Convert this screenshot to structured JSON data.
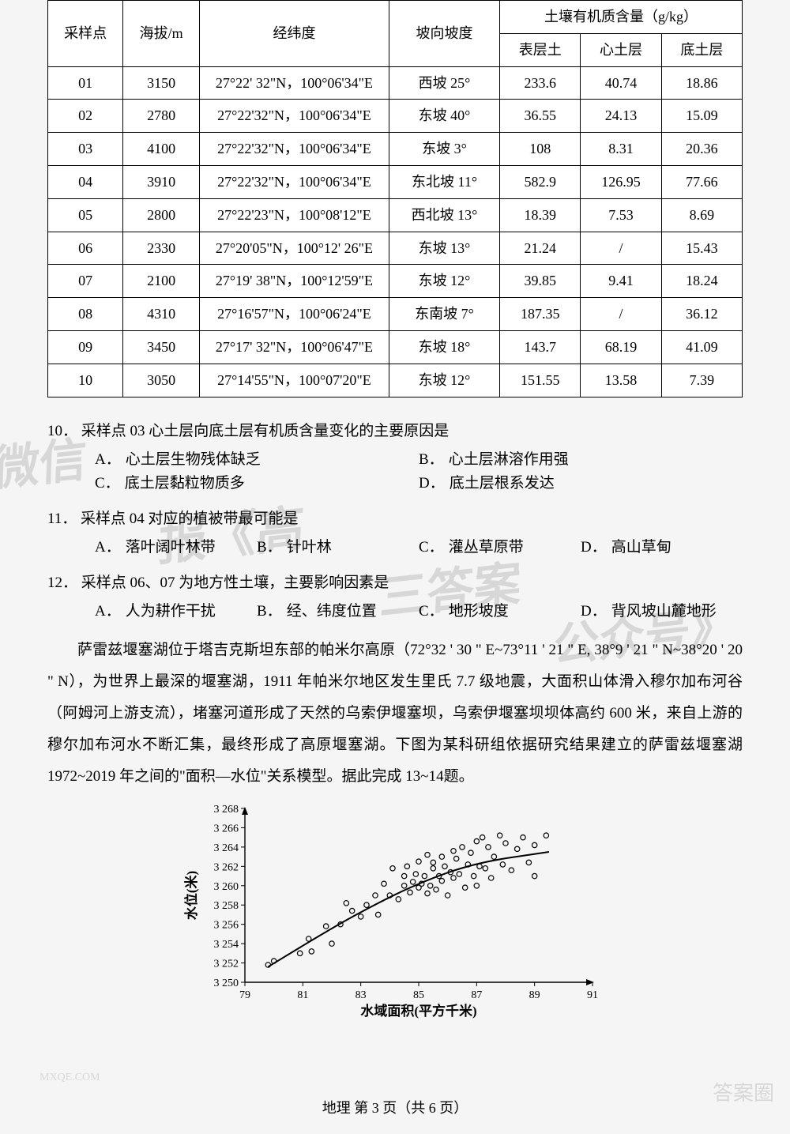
{
  "table": {
    "type": "table",
    "headers": {
      "col1": "采样点",
      "col2": "海拔/m",
      "col3": "经纬度",
      "col4": "坡向坡度",
      "col5_group": "土壤有机质含量（g/kg）",
      "col5a": "表层土",
      "col5b": "心土层",
      "col5c": "底土层"
    },
    "rows": [
      {
        "id": "01",
        "alt": "3150",
        "coord": "27°22' 32\"N，100°06'34\"E",
        "slope": "西坡 25°",
        "a": "233.6",
        "b": "40.74",
        "c": "18.86"
      },
      {
        "id": "02",
        "alt": "2780",
        "coord": "27°22'32\"N，100°06'34\"E",
        "slope": "东坡 40°",
        "a": "36.55",
        "b": "24.13",
        "c": "15.09"
      },
      {
        "id": "03",
        "alt": "4100",
        "coord": "27°22'32\"N，100°06'34\"E",
        "slope": "东坡 3°",
        "a": "108",
        "b": "8.31",
        "c": "20.36"
      },
      {
        "id": "04",
        "alt": "3910",
        "coord": "27°22'32\"N，100°06'34\"E",
        "slope": "东北坡 11°",
        "a": "582.9",
        "b": "126.95",
        "c": "77.66"
      },
      {
        "id": "05",
        "alt": "2800",
        "coord": "27°22'23\"N，100°08'12\"E",
        "slope": "西北坡 13°",
        "a": "18.39",
        "b": "7.53",
        "c": "8.69"
      },
      {
        "id": "06",
        "alt": "2330",
        "coord": "27°20'05\"N，100°12' 26\"E",
        "slope": "东坡 13°",
        "a": "21.24",
        "b": "/",
        "c": "15.43"
      },
      {
        "id": "07",
        "alt": "2100",
        "coord": "27°19' 38\"N，100°12'59\"E",
        "slope": "东坡 12°",
        "a": "39.85",
        "b": "9.41",
        "c": "18.24"
      },
      {
        "id": "08",
        "alt": "4310",
        "coord": "27°16'57\"N，100°06'24\"E",
        "slope": "东南坡 7°",
        "a": "187.35",
        "b": "/",
        "c": "36.12"
      },
      {
        "id": "09",
        "alt": "3450",
        "coord": "27°17' 32\"N，100°06'47\"E",
        "slope": "东坡 18°",
        "a": "143.7",
        "b": "68.19",
        "c": "41.09"
      },
      {
        "id": "10",
        "alt": "3050",
        "coord": "27°14'55\"N，100°07'20\"E",
        "slope": "东坡 12°",
        "a": "151.55",
        "b": "13.58",
        "c": "7.39"
      }
    ]
  },
  "q10": {
    "num": "10．",
    "stem": "采样点 03 心土层向底土层有机质含量变化的主要原因是",
    "A": "心土层生物残体缺乏",
    "B": "心土层淋溶作用强",
    "C": "底土层黏粒物质多",
    "D": "底土层根系发达"
  },
  "q11": {
    "num": "11．",
    "stem": "采样点 04 对应的植被带最可能是",
    "A": "落叶阔叶林带",
    "B": "针叶林",
    "C": "灌丛草原带",
    "D": "高山草甸"
  },
  "q12": {
    "num": "12．",
    "stem": "采样点 06、07 为地方性土壤，主要影响因素是",
    "A": "人为耕作干扰",
    "B": "经、纬度位置",
    "C": "地形坡度",
    "D": "背风坡山麓地形"
  },
  "passage": "萨雷兹堰塞湖位于塔吉克斯坦东部的帕米尔高原（72°32 ' 30 \" E~73°11 ' 21 \" E, 38°9 ' 21 \" N~38°20 ' 20 \" N），为世界上最深的堰塞湖，1911 年帕米尔地区发生里氏 7.7 级地震，大面积山体滑入穆尔加布河谷（阿姆河上游支流），堵塞河道形成了天然的乌索伊堰塞坝，乌索伊堰塞坝坝体高约 600 米，来自上游的穆尔加布河水不断汇集，最终形成了高原堰塞湖。下图为某科研组依据研究结果建立的萨雷兹堰塞湖 1972~2019 年之间的\"面积—水位\"关系模型。据此完成 13~14题。",
  "chart": {
    "type": "scatter",
    "xlabel": "水域面积(平方千米)",
    "ylabel": "水位(米)",
    "xlim": [
      79,
      91
    ],
    "xtick_step": 2,
    "xticks": [
      "79",
      "81",
      "83",
      "85",
      "87",
      "89",
      "91"
    ],
    "ylim": [
      3250,
      3268
    ],
    "ytick_step": 2,
    "yticks": [
      "3 250",
      "3 252",
      "3 254",
      "3 256",
      "3 258",
      "3 260",
      "3 262",
      "3 264",
      "3 266",
      "3 268"
    ],
    "marker": "circle-open",
    "marker_color": "#000000",
    "line_color": "#000000",
    "background_color": "#f5f5f5",
    "axis_color": "#000000",
    "label_fontsize": 17,
    "tick_fontsize": 14,
    "points": [
      [
        79.8,
        3251.8
      ],
      [
        80.0,
        3252.2
      ],
      [
        80.9,
        3253.0
      ],
      [
        81.2,
        3254.5
      ],
      [
        81.3,
        3253.2
      ],
      [
        81.8,
        3255.8
      ],
      [
        82.0,
        3254.0
      ],
      [
        82.3,
        3256.0
      ],
      [
        82.7,
        3257.4
      ],
      [
        82.5,
        3258.2
      ],
      [
        83.0,
        3256.8
      ],
      [
        83.2,
        3258.0
      ],
      [
        83.5,
        3259.0
      ],
      [
        83.6,
        3257.0
      ],
      [
        83.8,
        3260.2
      ],
      [
        84.0,
        3259.0
      ],
      [
        84.1,
        3261.8
      ],
      [
        84.3,
        3258.6
      ],
      [
        84.5,
        3260.0
      ],
      [
        84.5,
        3261.0
      ],
      [
        84.6,
        3262.0
      ],
      [
        84.7,
        3259.3
      ],
      [
        84.8,
        3260.4
      ],
      [
        84.9,
        3261.2
      ],
      [
        85.0,
        3259.8
      ],
      [
        85.0,
        3262.5
      ],
      [
        85.1,
        3260.2
      ],
      [
        85.2,
        3261.0
      ],
      [
        85.3,
        3263.2
      ],
      [
        85.3,
        3259.2
      ],
      [
        85.4,
        3260.0
      ],
      [
        85.5,
        3261.8
      ],
      [
        85.5,
        3262.4
      ],
      [
        85.6,
        3259.6
      ],
      [
        85.7,
        3261.0
      ],
      [
        85.8,
        3263.0
      ],
      [
        85.8,
        3260.5
      ],
      [
        85.9,
        3262.0
      ],
      [
        86.0,
        3259.0
      ],
      [
        86.1,
        3261.4
      ],
      [
        86.2,
        3263.6
      ],
      [
        86.2,
        3260.8
      ],
      [
        86.3,
        3262.8
      ],
      [
        86.4,
        3261.2
      ],
      [
        86.5,
        3264.0
      ],
      [
        86.6,
        3259.8
      ],
      [
        86.7,
        3262.2
      ],
      [
        86.8,
        3263.4
      ],
      [
        86.9,
        3261.0
      ],
      [
        87.0,
        3264.6
      ],
      [
        87.0,
        3260.0
      ],
      [
        87.1,
        3262.0
      ],
      [
        87.2,
        3265.0
      ],
      [
        87.3,
        3261.8
      ],
      [
        87.4,
        3264.0
      ],
      [
        87.5,
        3260.8
      ],
      [
        87.6,
        3263.0
      ],
      [
        87.8,
        3265.2
      ],
      [
        87.9,
        3262.2
      ],
      [
        88.0,
        3264.4
      ],
      [
        88.2,
        3261.6
      ],
      [
        88.4,
        3263.8
      ],
      [
        88.6,
        3265.0
      ],
      [
        88.8,
        3262.4
      ],
      [
        89.0,
        3261.0
      ],
      [
        89.0,
        3264.2
      ],
      [
        89.4,
        3265.2
      ]
    ],
    "trend": [
      [
        79.8,
        3251.6
      ],
      [
        81.5,
        3254.7
      ],
      [
        83.0,
        3257.3
      ],
      [
        85.0,
        3260.3
      ],
      [
        87.0,
        3262.4
      ],
      [
        89.5,
        3263.5
      ]
    ]
  },
  "labels": {
    "A": "A．",
    "B": "B．",
    "C": "C．",
    "D": "D．"
  },
  "footer": "地理  第 3 页（共 6 页）",
  "wm": {
    "a": "微信",
    "b": "报《高",
    "c": "三答案",
    "d": "公众号》",
    "right": "答案圈",
    "site": "MXQE.COM"
  }
}
